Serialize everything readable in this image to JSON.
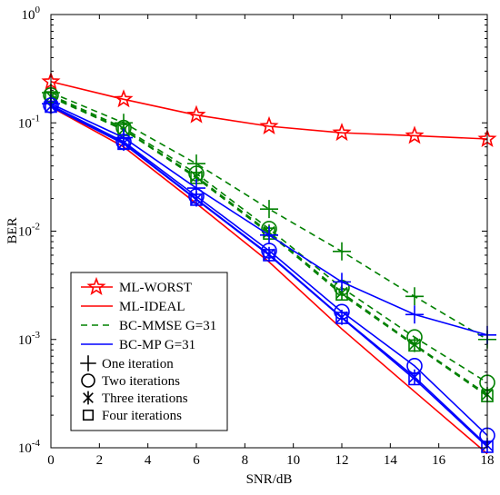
{
  "chart_data": {
    "type": "line",
    "xlabel": "SNR/dB",
    "ylabel": "BER",
    "xlim": [
      0,
      18
    ],
    "ylim": [
      0.0001,
      1
    ],
    "yscale": "log",
    "grid": false,
    "legend_position": "bottom-left",
    "x": [
      0,
      3,
      6,
      9,
      12,
      15,
      18
    ],
    "xticks": [
      0,
      2,
      4,
      6,
      8,
      10,
      12,
      14,
      16,
      18
    ],
    "yticks": [
      {
        "value": 1,
        "base": "10",
        "exp": "0"
      },
      {
        "value": 0.1,
        "base": "10",
        "exp": "-1"
      },
      {
        "value": 0.01,
        "base": "10",
        "exp": "-2"
      },
      {
        "value": 0.001,
        "base": "10",
        "exp": "-3"
      },
      {
        "value": 0.0001,
        "base": "10",
        "exp": "-4"
      }
    ],
    "series": [
      {
        "name": "ML-WORST",
        "color": "#ff0000",
        "style": "solid",
        "marker": "star5",
        "values": [
          0.24,
          0.165,
          0.118,
          0.093,
          0.081,
          0.076,
          0.071
        ]
      },
      {
        "name": "ML-IDEAL",
        "color": "#ff0000",
        "style": "solid",
        "marker": "none",
        "values": [
          0.14,
          0.06,
          0.018,
          0.0052,
          0.00125,
          0.00033,
          8.8e-05
        ]
      },
      {
        "name": "BC-MMSE G=31 one iteration",
        "color": "#008000",
        "style": "dashed",
        "marker": "plus",
        "values": [
          0.19,
          0.1,
          0.042,
          0.016,
          0.0065,
          0.0025,
          0.001
        ]
      },
      {
        "name": "BC-MMSE G=31 two iterations",
        "color": "#008000",
        "style": "dashed",
        "marker": "circle",
        "values": [
          0.18,
          0.09,
          0.034,
          0.0105,
          0.003,
          0.00105,
          0.0004
        ]
      },
      {
        "name": "BC-MMSE G=31 three iterations",
        "color": "#008000",
        "style": "dashed",
        "marker": "asterisk",
        "values": [
          0.175,
          0.087,
          0.032,
          0.0098,
          0.0027,
          0.0009,
          0.00031
        ]
      },
      {
        "name": "BC-MMSE G=31 four iterations",
        "color": "#008000",
        "style": "dashed",
        "marker": "square",
        "values": [
          0.172,
          0.086,
          0.031,
          0.0095,
          0.0026,
          0.00088,
          0.0003
        ]
      },
      {
        "name": "BC-MP G=31 one iteration",
        "color": "#0000ff",
        "style": "solid",
        "marker": "plus",
        "values": [
          0.15,
          0.073,
          0.025,
          0.0092,
          0.0034,
          0.0017,
          0.0011
        ]
      },
      {
        "name": "BC-MP G=31 two iterations",
        "color": "#0000ff",
        "style": "solid",
        "marker": "circle",
        "values": [
          0.145,
          0.067,
          0.021,
          0.0066,
          0.0018,
          0.00057,
          0.00013
        ]
      },
      {
        "name": "BC-MP G=31 three iterations",
        "color": "#0000ff",
        "style": "solid",
        "marker": "asterisk",
        "values": [
          0.142,
          0.065,
          0.0198,
          0.0061,
          0.0016,
          0.00045,
          0.000105
        ]
      },
      {
        "name": "BC-MP G=31 four iterations",
        "color": "#0000ff",
        "style": "solid",
        "marker": "square",
        "values": [
          0.141,
          0.064,
          0.0195,
          0.006,
          0.00158,
          0.00043,
          0.000102
        ]
      }
    ],
    "legend": [
      {
        "label": "ML-WORST",
        "color": "#ff0000",
        "style": "solid",
        "marker": "star5"
      },
      {
        "label": "ML-IDEAL",
        "color": "#ff0000",
        "style": "solid",
        "marker": "none"
      },
      {
        "label": "BC-MMSE G=31",
        "color": "#008000",
        "style": "dashed",
        "marker": "none"
      },
      {
        "label": "BC-MP G=31",
        "color": "#0000ff",
        "style": "solid",
        "marker": "none"
      },
      {
        "label": "One iteration",
        "color": "#000000",
        "style": "none",
        "marker": "plus"
      },
      {
        "label": "Two iterations",
        "color": "#000000",
        "style": "none",
        "marker": "circle"
      },
      {
        "label": "Three iterations",
        "color": "#000000",
        "style": "none",
        "marker": "asterisk"
      },
      {
        "label": "Four iterations",
        "color": "#000000",
        "style": "none",
        "marker": "square"
      }
    ]
  }
}
